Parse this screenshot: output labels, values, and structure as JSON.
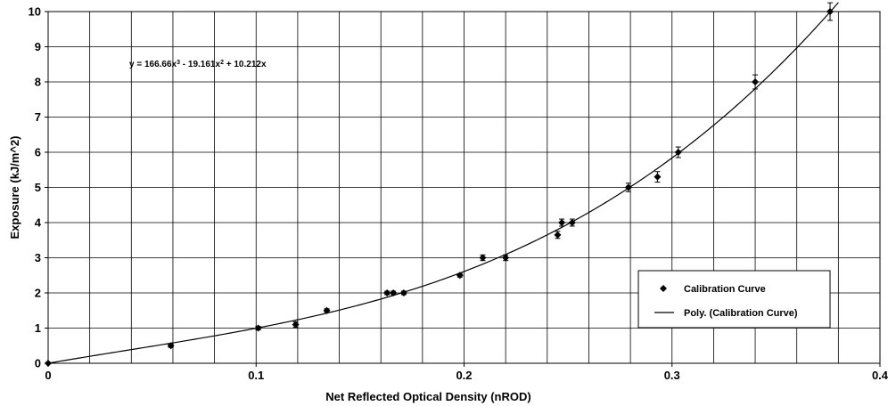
{
  "chart_data": {
    "type": "scatter",
    "xlabel": "Net Reflected Optical Density (nROD)",
    "ylabel": "Exposure (kJ/m^2)",
    "xlim": [
      0,
      0.4
    ],
    "ylim": [
      0,
      10
    ],
    "x_ticks": [
      "0",
      "0.1",
      "0.2",
      "0.3",
      "0.4"
    ],
    "y_ticks": [
      "0",
      "1",
      "2",
      "3",
      "4",
      "5",
      "6",
      "7",
      "8",
      "9",
      "10"
    ],
    "minor_x_step": 0.02,
    "grid": true,
    "equation": {
      "text": "y = 166.66x³ - 19.161x² + 10.212x",
      "coefficients": [
        166.66,
        -19.161,
        10.212,
        0
      ]
    },
    "legend": {
      "placement": "bottom-right",
      "entries": [
        "Calibration Curve",
        "Poly. (Calibration Curve)"
      ]
    },
    "series": [
      {
        "name": "Calibration Curve",
        "marker": "diamond",
        "points": [
          {
            "x": 0.0,
            "y": 0.0,
            "err": 0.0
          },
          {
            "x": 0.059,
            "y": 0.5,
            "err": 0.05
          },
          {
            "x": 0.101,
            "y": 1.0,
            "err": 0.05
          },
          {
            "x": 0.119,
            "y": 1.1,
            "err": 0.08
          },
          {
            "x": 0.134,
            "y": 1.5,
            "err": 0.05
          },
          {
            "x": 0.163,
            "y": 2.0,
            "err": 0.05
          },
          {
            "x": 0.166,
            "y": 2.0,
            "err": 0.05
          },
          {
            "x": 0.171,
            "y": 2.0,
            "err": 0.05
          },
          {
            "x": 0.198,
            "y": 2.5,
            "err": 0.05
          },
          {
            "x": 0.209,
            "y": 3.0,
            "err": 0.08
          },
          {
            "x": 0.22,
            "y": 3.0,
            "err": 0.08
          },
          {
            "x": 0.245,
            "y": 3.65,
            "err": 0.1
          },
          {
            "x": 0.247,
            "y": 4.0,
            "err": 0.1
          },
          {
            "x": 0.252,
            "y": 4.0,
            "err": 0.1
          },
          {
            "x": 0.279,
            "y": 5.0,
            "err": 0.12
          },
          {
            "x": 0.293,
            "y": 5.3,
            "err": 0.15
          },
          {
            "x": 0.303,
            "y": 6.0,
            "err": 0.15
          },
          {
            "x": 0.34,
            "y": 8.0,
            "err": 0.2
          },
          {
            "x": 0.376,
            "y": 10.0,
            "err": 0.25
          }
        ]
      },
      {
        "name": "Poly. (Calibration Curve)",
        "type": "line",
        "x_range": [
          0,
          0.38
        ]
      }
    ]
  }
}
